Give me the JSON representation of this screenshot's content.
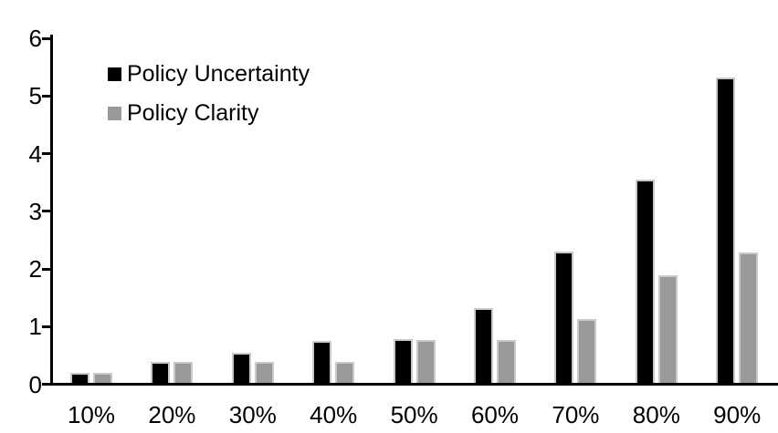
{
  "chart_data": {
    "type": "bar",
    "title": "",
    "xlabel": "",
    "ylabel": "",
    "categories": [
      "10%",
      "20%",
      "30%",
      "40%",
      "50%",
      "60%",
      "70%",
      "80%",
      "90%"
    ],
    "series": [
      {
        "name": "Policy Uncertainty",
        "color": "#000000",
        "values": [
          0.19,
          0.38,
          0.55,
          0.75,
          0.78,
          1.32,
          2.3,
          3.55,
          5.32
        ]
      },
      {
        "name": "Policy Clarity",
        "color": "#999999",
        "values": [
          0.19,
          0.38,
          0.38,
          0.38,
          0.76,
          0.76,
          1.13,
          1.89,
          2.29
        ]
      }
    ],
    "ylim": [
      0,
      6
    ],
    "yticks": [
      0,
      1,
      2,
      3,
      4,
      5,
      6
    ],
    "grid": false,
    "legend_position": "top-left",
    "bar_border_color": "#c9c9c9",
    "axis_color": "#000000",
    "background_color": "#ffffff"
  }
}
